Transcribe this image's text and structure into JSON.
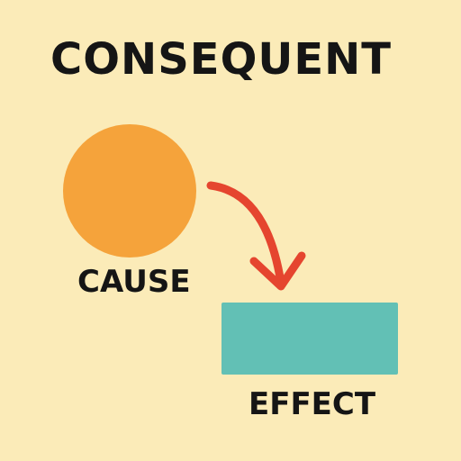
{
  "title": "CONSEQUENT",
  "cause": {
    "label": "CAUSE",
    "color": "#f5a33b"
  },
  "effect": {
    "label": "EFFECT",
    "color": "#62c0b5"
  },
  "arrow": {
    "color": "#e5452f"
  },
  "background_color": "#fbebb8"
}
